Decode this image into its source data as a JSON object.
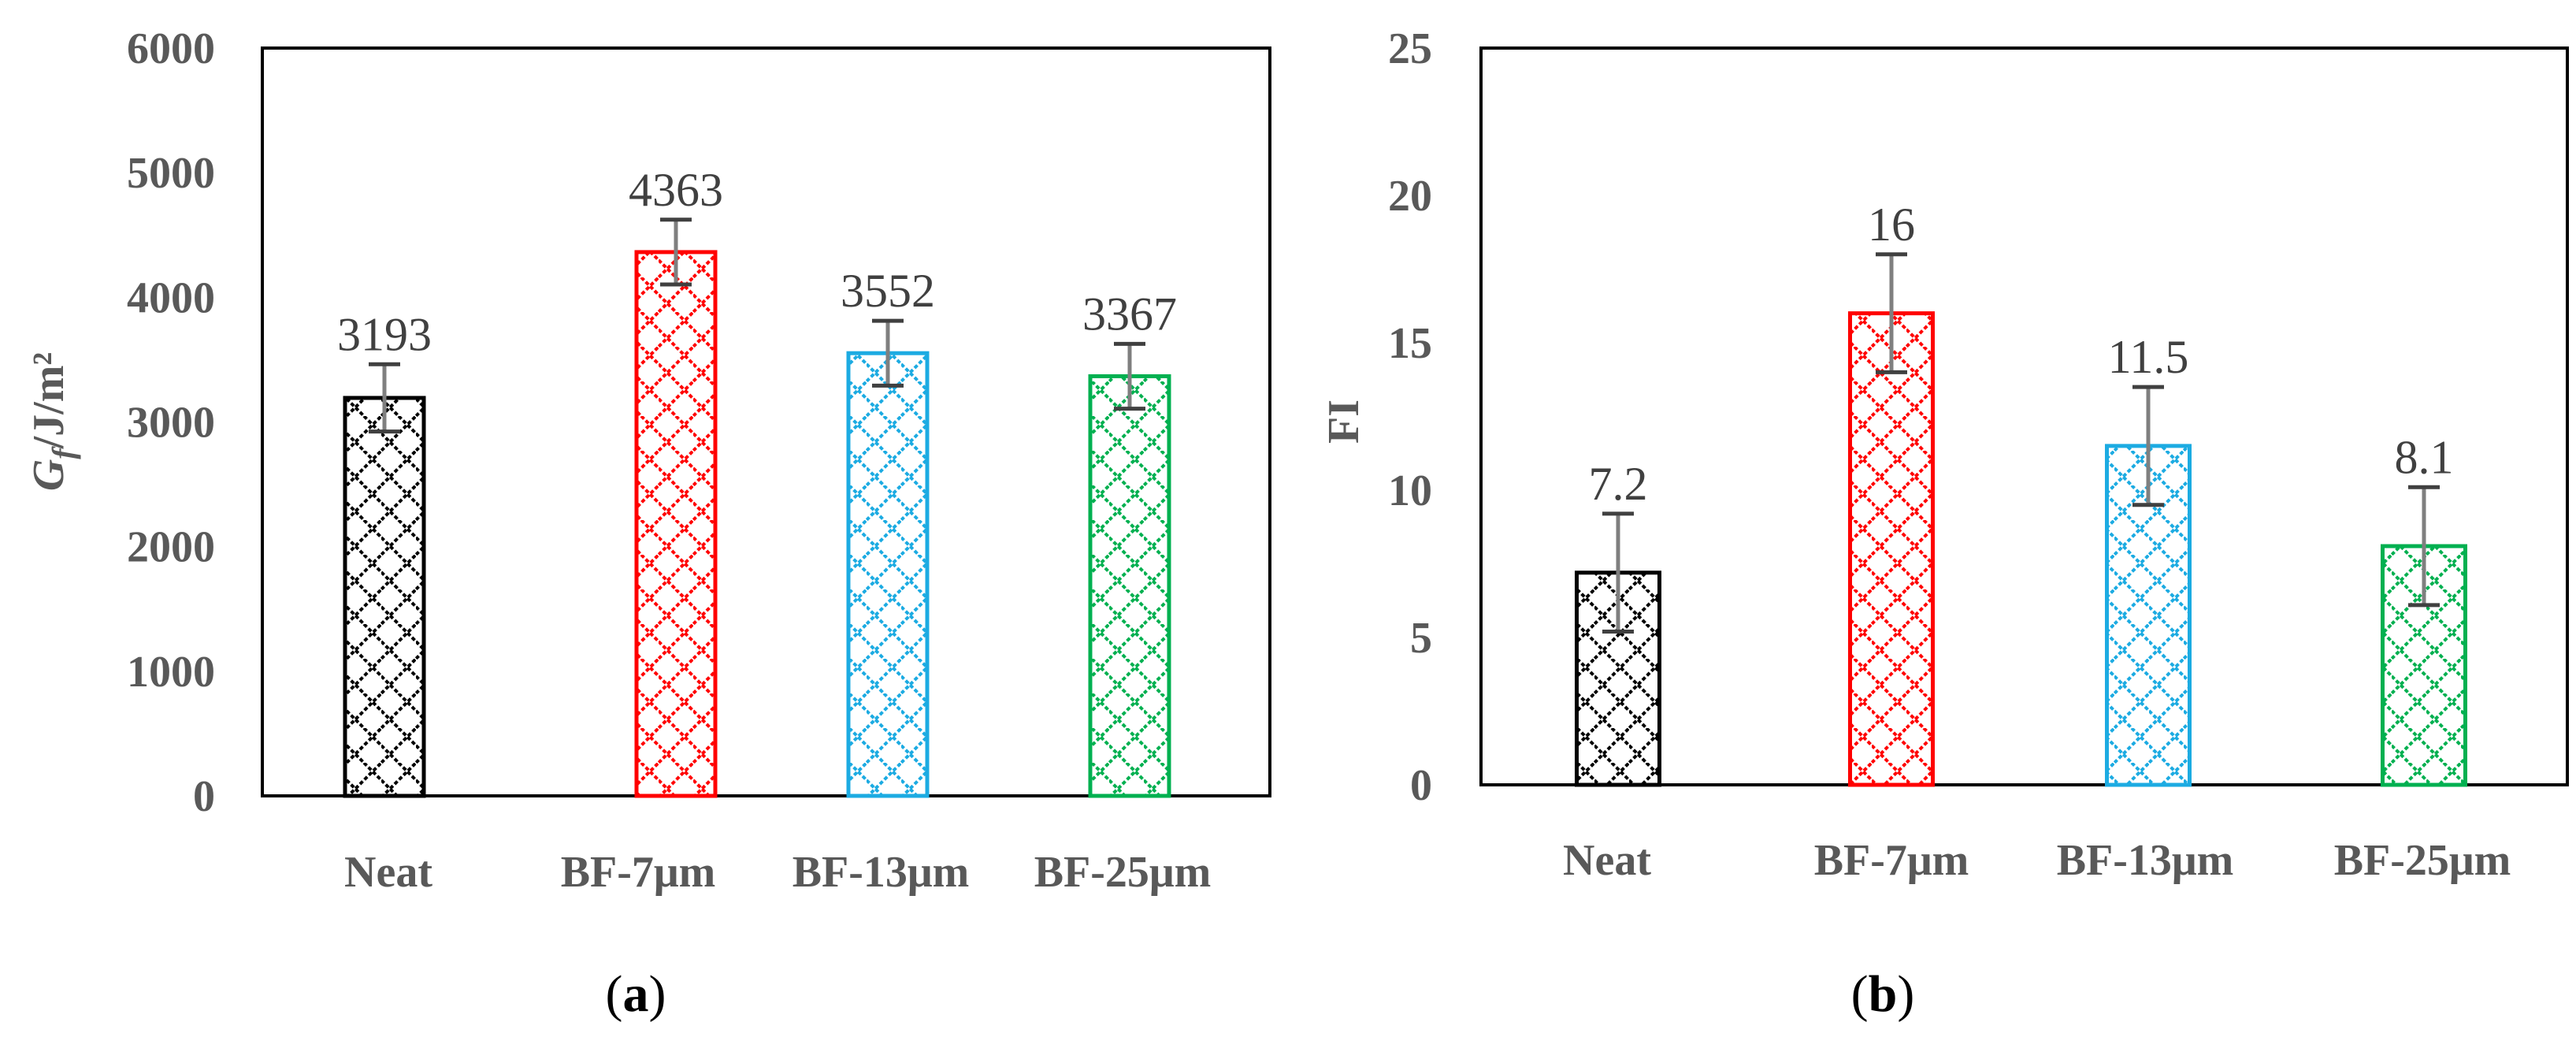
{
  "chart_data": [
    {
      "type": "bar",
      "panel_label": "a",
      "categories": [
        "Neat",
        "BF-7μm",
        "BF-13μm",
        "BF-25μm"
      ],
      "values": [
        3193,
        4363,
        3552,
        3367
      ],
      "errors": [
        270,
        260,
        260,
        260
      ],
      "data_labels": [
        "3193",
        "4363",
        "3552",
        "3367"
      ],
      "ylabel_italic": "G",
      "ylabel_sub": "f",
      "ylabel_rest": "/J/m²",
      "ylim": [
        0,
        6000
      ],
      "yticks": [
        "0",
        "1000",
        "2000",
        "3000",
        "4000",
        "5000",
        "6000"
      ],
      "grid": false,
      "legend": "none",
      "colors": [
        "#000000",
        "#ff0000",
        "#1cabe2",
        "#00b050"
      ]
    },
    {
      "type": "bar",
      "panel_label": "b",
      "categories": [
        "Neat",
        "BF-7μm",
        "BF-13μm",
        "BF-25μm"
      ],
      "values": [
        7.2,
        16,
        11.5,
        8.1
      ],
      "errors": [
        2.0,
        2.0,
        2.0,
        2.0
      ],
      "data_labels": [
        "7.2",
        "16",
        "11.5",
        "8.1"
      ],
      "ylabel": "FI",
      "ylim": [
        0,
        25
      ],
      "yticks": [
        "0",
        "5",
        "10",
        "15",
        "20",
        "25"
      ],
      "grid": false,
      "legend": "none",
      "colors": [
        "#000000",
        "#ff0000",
        "#1cabe2",
        "#00b050"
      ]
    }
  ]
}
